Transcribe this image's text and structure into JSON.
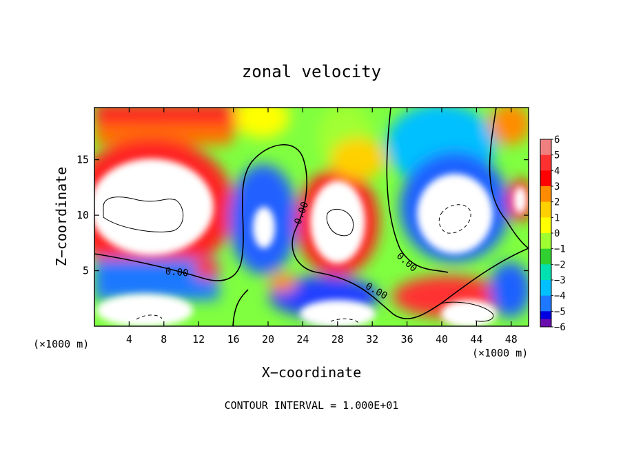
{
  "chart_data": {
    "type": "heatmap",
    "title": "zonal velocity",
    "xlabel": "X−coordinate",
    "ylabel": "Z−coordinate",
    "x_unit_left": "(×1000 m)",
    "x_unit_right": "(×1000 m)",
    "footer": "CONTOUR INTERVAL = 1.000E+01",
    "xlim": [
      0,
      50
    ],
    "ylim": [
      0,
      19.7
    ],
    "x_ticks": [
      4,
      8,
      12,
      16,
      20,
      24,
      28,
      32,
      36,
      40,
      44,
      48
    ],
    "y_ticks": [
      5,
      10,
      15
    ],
    "colorbar": {
      "levels": [
        6,
        5,
        4,
        3,
        2,
        1,
        0,
        -1,
        -2,
        -3,
        -4,
        -5,
        -6
      ],
      "labels": [
        "6",
        "5",
        "4",
        "3",
        "2",
        "1",
        "0",
        "−1",
        "−2",
        "−3",
        "−4",
        "−5",
        "−6"
      ],
      "colors": [
        "#f08080",
        "#ff3030",
        "#ff0000",
        "#ff8c00",
        "#ffd000",
        "#ffff00",
        "#a0ff30",
        "#30d030",
        "#00e0b0",
        "#00c0ff",
        "#1e78ff",
        "#0000e0",
        "#6a0dad"
      ]
    },
    "contour_labels": [
      {
        "text": "0.00",
        "x": 9.5,
        "z": 4.9,
        "angle": 5
      },
      {
        "text": "0.00",
        "x": 23.8,
        "z": 10.2,
        "angle": -70
      },
      {
        "text": "0.00",
        "x": 36.0,
        "z": 5.8,
        "angle": 42
      },
      {
        "text": "0.00",
        "x": 32.5,
        "z": 3.2,
        "angle": 30
      }
    ],
    "features": [
      {
        "kind": "saturated-positive",
        "x": 6.5,
        "z": 11.5,
        "rx": 6.5,
        "rz": 5.0
      },
      {
        "kind": "saturated-positive",
        "x": 27.5,
        "z": 9.5,
        "rx": 3.0,
        "rz": 4.5
      },
      {
        "kind": "saturated-negative",
        "x": 42.0,
        "z": 10.0,
        "rx": 4.0,
        "rz": 4.0
      },
      {
        "kind": "saturated-negative",
        "x": 19.8,
        "z": 9.3,
        "rx": 1.5,
        "rz": 2.5
      }
    ]
  }
}
